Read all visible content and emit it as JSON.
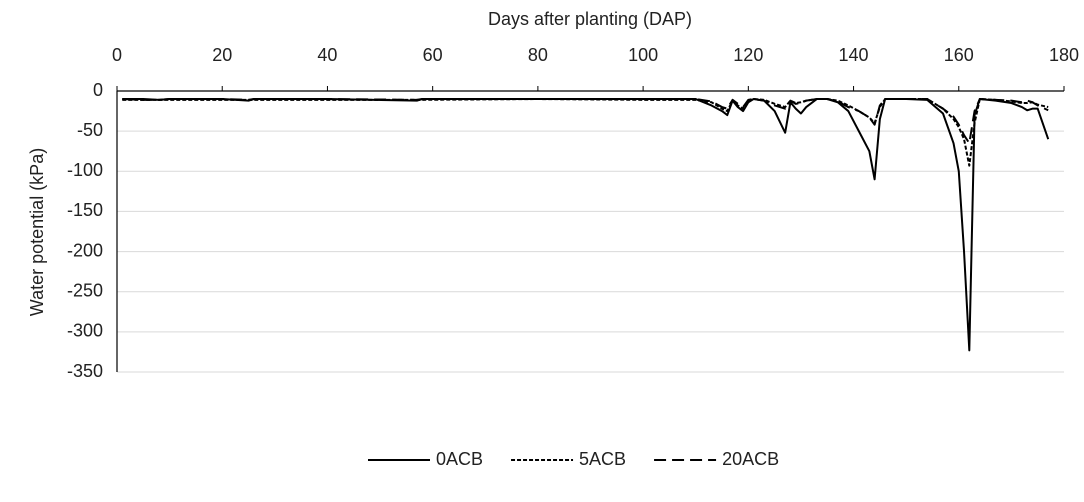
{
  "chart_data": {
    "type": "line",
    "x_label": "Days after planting (DAP)",
    "y_label": "Water potential (kPa)",
    "x_axis_position": "top",
    "grid": true,
    "legend": "bottom",
    "xlim": [
      0,
      180
    ],
    "xticks": [
      0,
      20,
      40,
      60,
      80,
      100,
      120,
      140,
      160,
      180
    ],
    "ylim": [
      -350,
      0
    ],
    "yticks": [
      0,
      -50,
      -100,
      -150,
      -200,
      -250,
      -300,
      -350
    ],
    "x": [
      1,
      5,
      8,
      10,
      20,
      25,
      26,
      40,
      57,
      58,
      80,
      100,
      110,
      113,
      115,
      116,
      117,
      118,
      119,
      120,
      121,
      123,
      125,
      127,
      128,
      129,
      130,
      131,
      133,
      135,
      137,
      139,
      141,
      143,
      144,
      145,
      146,
      150,
      154,
      157,
      159,
      160,
      161,
      162,
      163,
      164,
      167,
      170,
      172,
      173,
      174,
      175,
      177
    ],
    "series": [
      {
        "name": "0ACB",
        "color": "#000000",
        "line_style": "solid",
        "values": [
          -10,
          -10,
          -11,
          -10,
          -10,
          -12,
          -10,
          -10,
          -12,
          -10,
          -10,
          -10,
          -10,
          -18,
          -25,
          -30,
          -12,
          -20,
          -25,
          -14,
          -10,
          -12,
          -25,
          -52,
          -14,
          -22,
          -28,
          -20,
          -10,
          -10,
          -14,
          -25,
          -50,
          -75,
          -110,
          -35,
          -10,
          -10,
          -11,
          -28,
          -65,
          -100,
          -200,
          -323,
          -30,
          -10,
          -12,
          -15,
          -20,
          -24,
          -22,
          -22,
          -60
        ]
      },
      {
        "name": "5ACB",
        "color": "#000000",
        "line_style": "dotted",
        "values": [
          -11,
          -11,
          -11,
          -11,
          -11,
          -11,
          -11,
          -11,
          -11,
          -11,
          -10,
          -11,
          -11,
          -14,
          -22,
          -25,
          -12,
          -18,
          -22,
          -12,
          -10,
          -11,
          -16,
          -20,
          -12,
          -15,
          -14,
          -12,
          -10,
          -10,
          -12,
          -18,
          -25,
          -33,
          -40,
          -20,
          -10,
          -10,
          -10,
          -22,
          -35,
          -45,
          -60,
          -93,
          -40,
          -10,
          -11,
          -13,
          -15,
          -15,
          -14,
          -17,
          -20
        ]
      },
      {
        "name": "20ACB",
        "color": "#000000",
        "line_style": "dashed",
        "values": [
          -10,
          -11,
          -11,
          -10,
          -10,
          -11,
          -10,
          -10,
          -11,
          -10,
          -10,
          -10,
          -10,
          -13,
          -20,
          -22,
          -11,
          -16,
          -20,
          -11,
          -10,
          -12,
          -18,
          -22,
          -12,
          -16,
          -15,
          -12,
          -10,
          -10,
          -13,
          -20,
          -25,
          -33,
          -42,
          -18,
          -10,
          -10,
          -10,
          -22,
          -32,
          -42,
          -55,
          -65,
          -25,
          -10,
          -11,
          -12,
          -14,
          -12,
          -14,
          -18,
          -24
        ]
      }
    ]
  }
}
